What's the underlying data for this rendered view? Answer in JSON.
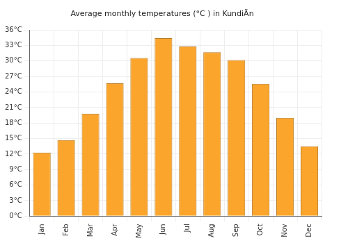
{
  "chart_data": {
    "type": "bar",
    "title": "Average monthly temperatures (°C ) in KundiÄn",
    "categories": [
      "Jan",
      "Feb",
      "Mar",
      "Apr",
      "May",
      "Jun",
      "Jul",
      "Aug",
      "Sep",
      "Oct",
      "Nov",
      "Dec"
    ],
    "values": [
      12.3,
      14.7,
      19.8,
      25.7,
      30.6,
      34.4,
      32.8,
      31.7,
      30.2,
      25.6,
      19.0,
      13.5
    ],
    "color": "#fba52c",
    "ylim": [
      0,
      36
    ],
    "yticks": [
      {
        "value": 0,
        "label": "0°C"
      },
      {
        "value": 3,
        "label": "3°C"
      },
      {
        "value": 6,
        "label": "6°C"
      },
      {
        "value": 9,
        "label": "9°C"
      },
      {
        "value": 12,
        "label": "12°C"
      },
      {
        "value": 15,
        "label": "15°C"
      },
      {
        "value": 18,
        "label": "18°C"
      },
      {
        "value": 21,
        "label": "21°C"
      },
      {
        "value": 24,
        "label": "24°C"
      },
      {
        "value": 27,
        "label": "27°C"
      },
      {
        "value": 30,
        "label": "30°C"
      },
      {
        "value": 33,
        "label": "33°C"
      },
      {
        "value": 36,
        "label": "36°C"
      }
    ],
    "grid": true
  }
}
